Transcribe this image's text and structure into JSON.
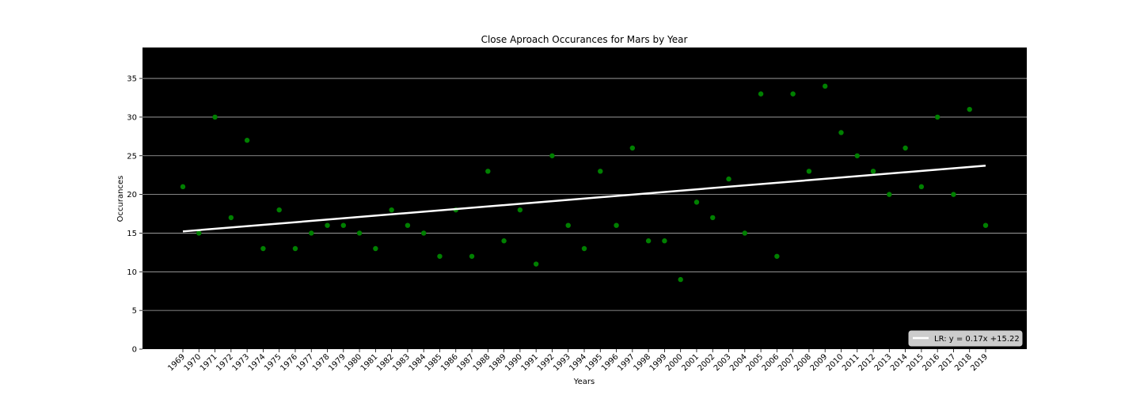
{
  "chart_data": {
    "type": "scatter",
    "title": "Close Aproach Occurances for Mars by Year",
    "xlabel": "Years",
    "ylabel": "Occurances",
    "ylim": [
      0,
      39
    ],
    "yticks": [
      0,
      5,
      10,
      15,
      20,
      25,
      30,
      35
    ],
    "grid": "horizontal",
    "legend_placement": "lower-right",
    "background_color": "#000000",
    "point_color": "#008000",
    "line_color": "#ffffff",
    "categories": [
      "1969",
      "1970",
      "1971",
      "1972",
      "1973",
      "1974",
      "1975",
      "1976",
      "1977",
      "1978",
      "1979",
      "1980",
      "1981",
      "1982",
      "1983",
      "1984",
      "1985",
      "1986",
      "1987",
      "1988",
      "1989",
      "1990",
      "1991",
      "1992",
      "1993",
      "1994",
      "1995",
      "1996",
      "1997",
      "1998",
      "1999",
      "2000",
      "2001",
      "2002",
      "2003",
      "2004",
      "2005",
      "2006",
      "2007",
      "2008",
      "2009",
      "2010",
      "2011",
      "2012",
      "2013",
      "2014",
      "2015",
      "2016",
      "2017",
      "2018",
      "2019"
    ],
    "values": [
      21,
      15,
      30,
      17,
      27,
      13,
      18,
      13,
      15,
      16,
      16,
      15,
      13,
      18,
      16,
      15,
      12,
      18,
      12,
      23,
      14,
      18,
      11,
      25,
      16,
      13,
      23,
      16,
      26,
      14,
      14,
      9,
      19,
      17,
      22,
      15,
      33,
      12,
      33,
      23,
      34,
      28,
      25,
      23,
      20,
      26,
      21,
      30,
      20,
      31,
      16
    ],
    "regression": {
      "label": "LR: y = 0.17x +15.22",
      "slope": 0.17,
      "intercept": 15.22
    }
  }
}
